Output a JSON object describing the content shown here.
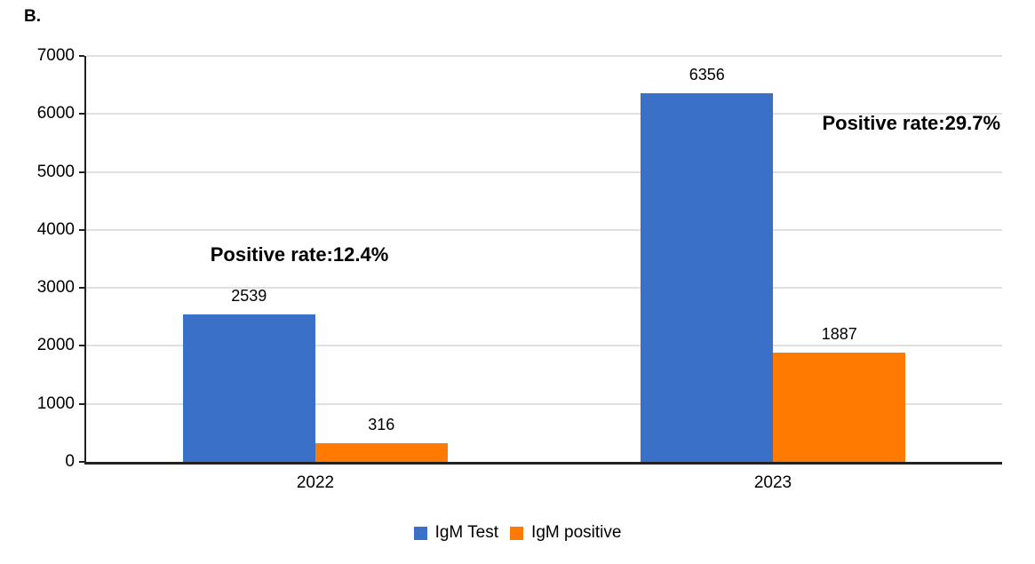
{
  "figure_label": "B.",
  "chart_data": {
    "type": "bar",
    "title": "",
    "xlabel": "",
    "ylabel": "",
    "categories": [
      "2022",
      "2023"
    ],
    "series": [
      {
        "name": "IgM Test",
        "color": "#3a70c8",
        "values": [
          2539,
          6356
        ]
      },
      {
        "name": "IgM positive",
        "color": "#ff7a00",
        "values": [
          316,
          1887
        ]
      }
    ],
    "annotations": [
      {
        "text": "Positive rate:12.4%",
        "category": "2022"
      },
      {
        "text": "Positive rate:29.7%",
        "category": "2023"
      }
    ],
    "ylim": [
      0,
      7000
    ],
    "yticks": [
      0,
      1000,
      2000,
      3000,
      4000,
      5000,
      6000,
      7000
    ],
    "grid": true,
    "value_labels": true,
    "legend_position": "bottom",
    "colors": {
      "axis": "#212121",
      "gridline": "#e0e0e0",
      "text": "#000000"
    }
  }
}
